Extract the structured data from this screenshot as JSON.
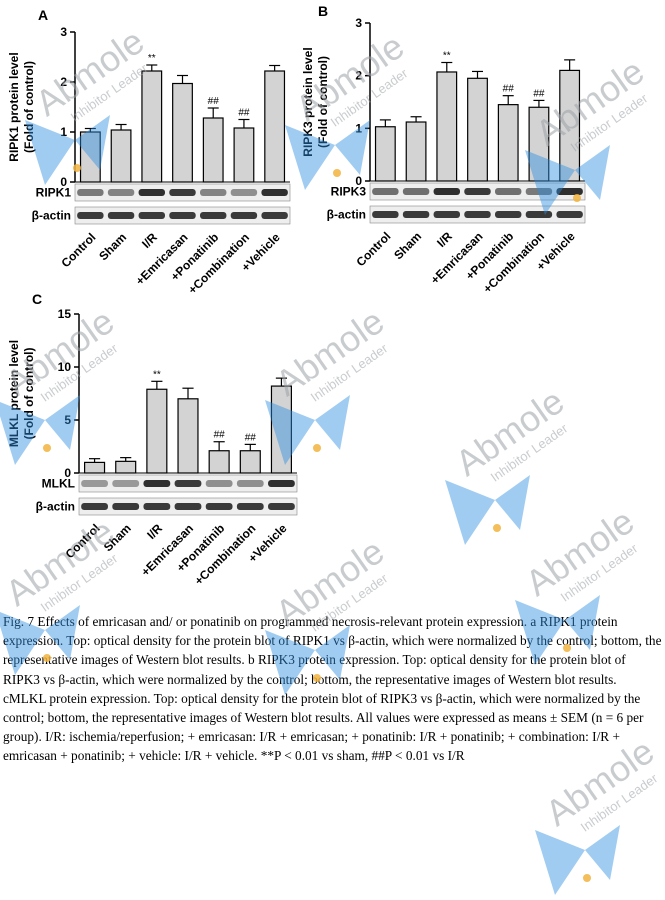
{
  "figure": {
    "watermark": {
      "brand": "Abmole",
      "tagline": "Inhibitor Leader",
      "color": "#9ea3a8",
      "accent": "#2f8fe0",
      "dot": "#f2b33d"
    },
    "blot_color": "#1a1a1a",
    "bar_fill": "#d3d3d3"
  },
  "chart_data": [
    {
      "panel": "A",
      "type": "bar",
      "ylabel": "RIPK1 protein level\n(Fold of control)",
      "ylim": [
        0,
        3
      ],
      "yticks": [
        0,
        1,
        2,
        3
      ],
      "categories": [
        "Control",
        "Sham",
        "I/R",
        "+Emricasan",
        "+Ponatinib",
        "+Combination",
        "+Vehicle"
      ],
      "values": [
        1.0,
        1.04,
        2.22,
        1.97,
        1.28,
        1.08,
        2.22
      ],
      "errors": [
        0.07,
        0.11,
        0.12,
        0.16,
        0.2,
        0.17,
        0.11
      ],
      "annotations": [
        "",
        "",
        "**",
        "",
        "##",
        "##",
        ""
      ],
      "blot_labels": [
        "RIPK1",
        "β-actin"
      ],
      "blot_intensity": [
        [
          0.55,
          0.5,
          0.9,
          0.85,
          0.5,
          0.45,
          0.9
        ],
        [
          0.85,
          0.85,
          0.85,
          0.85,
          0.85,
          0.85,
          0.85
        ]
      ]
    },
    {
      "panel": "B",
      "type": "bar",
      "ylabel": "RIPK3 protein level\n(Fold of control)",
      "ylim": [
        0,
        3
      ],
      "yticks": [
        0,
        1,
        2,
        3
      ],
      "categories": [
        "Control",
        "Sham",
        "I/R",
        "+Emricasan",
        "+Ponatinib",
        "+Combination",
        "+Vehicle"
      ],
      "values": [
        1.03,
        1.12,
        2.07,
        1.95,
        1.45,
        1.4,
        2.1
      ],
      "errors": [
        0.13,
        0.1,
        0.18,
        0.13,
        0.17,
        0.13,
        0.2
      ],
      "annotations": [
        "",
        "",
        "**",
        "",
        "##",
        "##",
        ""
      ],
      "blot_labels": [
        "RIPK3",
        "β-actin"
      ],
      "blot_intensity": [
        [
          0.6,
          0.6,
          0.9,
          0.85,
          0.6,
          0.55,
          0.9
        ],
        [
          0.85,
          0.85,
          0.85,
          0.85,
          0.85,
          0.85,
          0.85
        ]
      ]
    },
    {
      "panel": "C",
      "type": "bar",
      "ylabel": "MLKL protein level\n(Fold of control)",
      "ylim": [
        0,
        15
      ],
      "yticks": [
        0,
        5,
        10,
        15
      ],
      "categories": [
        "Control",
        "Sham",
        "I/R",
        "+Emricasan",
        "+Ponatinib",
        "+Combination",
        "+Vehicle"
      ],
      "values": [
        1.0,
        1.1,
        7.9,
        7.0,
        2.1,
        2.1,
        8.2
      ],
      "errors": [
        0.35,
        0.35,
        0.75,
        1.0,
        0.85,
        0.6,
        0.75
      ],
      "annotations": [
        "",
        "",
        "**",
        "",
        "##",
        "##",
        ""
      ],
      "blot_labels": [
        "MLKL",
        "β-actin"
      ],
      "blot_intensity": [
        [
          0.4,
          0.4,
          0.9,
          0.85,
          0.45,
          0.45,
          0.9
        ],
        [
          0.85,
          0.85,
          0.85,
          0.85,
          0.85,
          0.85,
          0.85
        ]
      ]
    }
  ],
  "caption": {
    "text": "Fig. 7 Effects of emricasan and/ or ponatinib on programmed necrosis-relevant protein expression. a RIPK1 protein expression. Top: optical density for the protein blot of RIPK1 vs β-actin, which were normalized by the control; bottom, the representative images of Western blot results. b RIPK3 protein expression. Top: optical density for the protein blot of RIPK3 vs β-actin, which were normalized by the control; bottom, the representative images of Western blot results. cMLKL protein expression. Top: optical density for the protein blot of RIPK3 vs β-actin, which were normalized by the control; bottom, the representative images of Western blot results. All values were expressed as means ± SEM (n = 6 per group). I/R: ischemia/reperfusion; + emricasan: I/R + emricasan; + ponatinib: I/R + ponatinib; + combination: I/R + emricasan + ponatinib; + vehicle: I/R + vehicle. **P < 0.01 vs sham, ##P < 0.01 vs I/R"
  }
}
